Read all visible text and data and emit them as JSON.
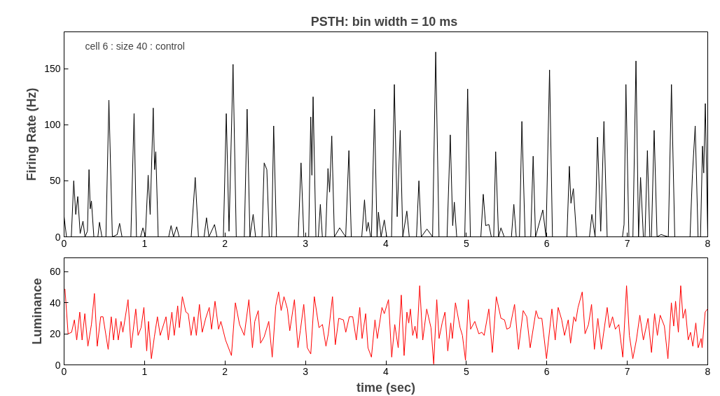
{
  "chart_data": [
    {
      "type": "line",
      "title": "PSTH:  bin width = 10 ms",
      "ylabel": "Firing Rate (Hz)",
      "annotations": [
        "cell 6 : size 40 : control"
      ],
      "x": [
        0,
        0.03,
        0.09,
        0.12,
        0.145,
        0.17,
        0.2,
        0.235,
        0.26,
        0.29,
        0.31,
        0.325,
        0.34,
        0.37,
        0.42,
        0.44,
        0.47,
        0.52,
        0.557,
        0.6,
        0.66,
        0.69,
        0.72,
        0.83,
        0.87,
        0.9,
        0.95,
        0.98,
        1.01,
        1.045,
        1.07,
        1.108,
        1.125,
        1.14,
        1.17,
        1.3,
        1.33,
        1.36,
        1.4,
        1.43,
        1.58,
        1.63,
        1.67,
        1.74,
        1.77,
        1.8,
        1.87,
        1.9,
        1.98,
        2.016,
        2.05,
        2.1,
        2.14,
        2.24,
        2.275,
        2.31,
        2.35,
        2.38,
        2.46,
        2.487,
        2.52,
        2.55,
        2.58,
        2.605,
        2.64,
        2.91,
        2.945,
        2.98,
        3.04,
        3.066,
        3.08,
        3.095,
        3.13,
        3.16,
        3.185,
        3.21,
        3.25,
        3.28,
        3.3,
        3.327,
        3.36,
        3.425,
        3.5,
        3.54,
        3.57,
        3.7,
        3.734,
        3.76,
        3.78,
        3.81,
        3.82,
        3.858,
        3.89,
        3.907,
        3.94,
        3.98,
        4.01,
        4.07,
        4.105,
        4.14,
        4.178,
        4.21,
        4.26,
        4.29,
        4.38,
        4.41,
        4.44,
        4.51,
        4.58,
        4.619,
        4.66,
        4.76,
        4.8,
        4.83,
        4.85,
        4.88,
        4.98,
        5.016,
        5.05,
        5.18,
        5.21,
        5.24,
        5.28,
        5.31,
        5.34,
        5.364,
        5.4,
        5.43,
        5.47,
        5.56,
        5.59,
        5.62,
        5.66,
        5.69,
        5.73,
        5.8,
        5.83,
        5.86,
        5.95,
        5.99,
        6.034,
        6.07,
        6.25,
        6.28,
        6.3,
        6.33,
        6.37,
        6.53,
        6.56,
        6.6,
        6.63,
        6.67,
        6.71,
        6.75,
        6.94,
        6.96,
        6.983,
        7.02,
        7.07,
        7.108,
        7.14,
        7.165,
        7.2,
        7.22,
        7.25,
        7.28,
        7.3,
        7.334,
        7.37,
        7.42,
        7.51,
        7.549,
        7.59,
        7.78,
        7.81,
        7.844,
        7.88,
        7.91,
        7.935,
        7.95,
        7.97,
        8
      ],
      "values": [
        18,
        0,
        0,
        50,
        20,
        36,
        3,
        14,
        0,
        5,
        60,
        25,
        32,
        0,
        0,
        13,
        0,
        0,
        122,
        0,
        2,
        12,
        0,
        0,
        110,
        0,
        0,
        8,
        0,
        55,
        20,
        115,
        60,
        76,
        0,
        0,
        10,
        0,
        9,
        0,
        0,
        53,
        0,
        0,
        17,
        0,
        11,
        0,
        0,
        110,
        5,
        154,
        0,
        0,
        114,
        0,
        20,
        0,
        0,
        66,
        60,
        0,
        0,
        99,
        0,
        0,
        66,
        0,
        0,
        107,
        55,
        125,
        0,
        0,
        29,
        0,
        0,
        61,
        40,
        90,
        0,
        8,
        0,
        77,
        0,
        0,
        33,
        5,
        13,
        0,
        0,
        114,
        0,
        22,
        0,
        15,
        0,
        0,
        136,
        18,
        95,
        0,
        23,
        0,
        0,
        50,
        0,
        7,
        0,
        165,
        0,
        0,
        91,
        10,
        31,
        0,
        0,
        132,
        0,
        0,
        38,
        10,
        11,
        0,
        0,
        76,
        0,
        8,
        0,
        0,
        29,
        0,
        0,
        103,
        0,
        0,
        72,
        0,
        24,
        0,
        149,
        0,
        0,
        63,
        30,
        43,
        0,
        0,
        20,
        0,
        89,
        5,
        103,
        0,
        0,
        11,
        136,
        0,
        0,
        157,
        0,
        53,
        0,
        0,
        77,
        0,
        0,
        95,
        0,
        2,
        0,
        136,
        0,
        0,
        56,
        99,
        0,
        0,
        81,
        57,
        119,
        0
      ],
      "color": "#000000",
      "xlim": [
        0,
        8
      ],
      "xticks": [
        0,
        1,
        2,
        3,
        4,
        5,
        6,
        7,
        8
      ],
      "ylim": [
        0,
        183
      ],
      "yticks": [
        0,
        50,
        100,
        150
      ],
      "grid": false
    },
    {
      "type": "line",
      "xlabel": "time (sec)",
      "ylabel": "Luminance",
      "x": [
        0.011,
        0.05,
        0.093,
        0.128,
        0.157,
        0.195,
        0.224,
        0.258,
        0.296,
        0.34,
        0.377,
        0.412,
        0.455,
        0.484,
        0.548,
        0.586,
        0.615,
        0.644,
        0.673,
        0.708,
        0.731,
        0.795,
        0.833,
        0.891,
        0.92,
        0.957,
        0.992,
        1.027,
        1.05,
        1.085,
        1.122,
        1.16,
        1.195,
        1.267,
        1.296,
        1.34,
        1.369,
        1.412,
        1.433,
        1.47,
        1.514,
        1.543,
        1.578,
        1.615,
        1.644,
        1.682,
        1.717,
        1.76,
        1.804,
        1.833,
        1.876,
        1.92,
        1.949,
        2.007,
        2.08,
        2.129,
        2.181,
        2.239,
        2.297,
        2.341,
        2.37,
        2.413,
        2.442,
        2.486,
        2.544,
        2.587,
        2.631,
        2.666,
        2.698,
        2.733,
        2.776,
        2.805,
        2.863,
        2.907,
        2.936,
        2.979,
        3.023,
        3.066,
        3.11,
        3.168,
        3.211,
        3.255,
        3.284,
        3.336,
        3.371,
        3.414,
        3.472,
        3.501,
        3.545,
        3.588,
        3.632,
        3.675,
        3.704,
        3.748,
        3.777,
        3.82,
        3.864,
        3.893,
        3.951,
        3.98,
        4.032,
        4.072,
        4.11,
        4.153,
        4.191,
        4.226,
        4.261,
        4.284,
        4.304,
        4.333,
        4.362,
        4.386,
        4.42,
        4.458,
        4.507,
        4.56,
        4.594,
        4.632,
        4.661,
        4.699,
        4.734,
        4.769,
        4.806,
        4.826,
        4.864,
        4.922,
        4.951,
        4.989,
        5.024,
        5.053,
        5.105,
        5.155,
        5.192,
        5.221,
        5.279,
        5.323,
        5.372,
        5.43,
        5.474,
        5.503,
        5.541,
        5.599,
        5.648,
        5.706,
        5.75,
        5.793,
        5.866,
        5.895,
        5.938,
        5.996,
        6.063,
        6.104,
        6.141,
        6.185,
        6.22,
        6.266,
        6.295,
        6.336,
        6.359,
        6.388,
        6.44,
        6.475,
        6.518,
        6.556,
        6.591,
        6.634,
        6.678,
        6.75,
        6.779,
        6.817,
        6.852,
        6.895,
        6.944,
        6.991,
        7.026,
        7.069,
        7.113,
        7.156,
        7.2,
        7.258,
        7.301,
        7.339,
        7.374,
        7.409,
        7.461,
        7.505,
        7.548,
        7.577,
        7.6,
        7.635,
        7.664,
        7.693,
        7.722,
        7.757,
        7.786,
        7.815,
        7.852,
        7.881,
        7.918,
        7.93,
        7.968,
        7.997
      ],
      "values": [
        49,
        20,
        21,
        29,
        16,
        34,
        16,
        33,
        12,
        26,
        46,
        12,
        31,
        31,
        10,
        31,
        16,
        30,
        16,
        28,
        21,
        42,
        11,
        36,
        19,
        24,
        37,
        9,
        28,
        4,
        18,
        31,
        19,
        31,
        16,
        34,
        19,
        38,
        24,
        44,
        34,
        33,
        19,
        31,
        19,
        39,
        21,
        30,
        37,
        23,
        41,
        23,
        28,
        16,
        6,
        40,
        26,
        19,
        42,
        11,
        28,
        35,
        14,
        18,
        28,
        5,
        38,
        47,
        35,
        44,
        36,
        22,
        42,
        11,
        22,
        39,
        11,
        7,
        44,
        24,
        26,
        12,
        20,
        44,
        13,
        30,
        29,
        21,
        31,
        31,
        16,
        37,
        17,
        33,
        11,
        5,
        29,
        17,
        37,
        33,
        42,
        5,
        26,
        11,
        45,
        6,
        34,
        27,
        36,
        19,
        25,
        17,
        51,
        16,
        36,
        24,
        0.5,
        42,
        17,
        27,
        34,
        9,
        27,
        17,
        40,
        24,
        19,
        3,
        42,
        23,
        28,
        20,
        21,
        19,
        36,
        8,
        44,
        30,
        29,
        23,
        24,
        39,
        10,
        35,
        31,
        11,
        35,
        30,
        30,
        4,
        36,
        16,
        37,
        29,
        19,
        29,
        14,
        31,
        28,
        37,
        47,
        20,
        26,
        39,
        10,
        30,
        10,
        37,
        24,
        31,
        23,
        26,
        5,
        51,
        19,
        4,
        16,
        32,
        16,
        30,
        8,
        33,
        19,
        32,
        25,
        4,
        40,
        25,
        41,
        21,
        51,
        30,
        36,
        16,
        21,
        12,
        27,
        11,
        17,
        11,
        34,
        36
      ],
      "color": "#ff0000",
      "xlim": [
        0,
        8
      ],
      "xticks": [
        0,
        1,
        2,
        3,
        4,
        5,
        6,
        7,
        8
      ],
      "ylim": [
        0,
        69
      ],
      "yticks": [
        0,
        20,
        40,
        60
      ],
      "grid": false
    }
  ]
}
